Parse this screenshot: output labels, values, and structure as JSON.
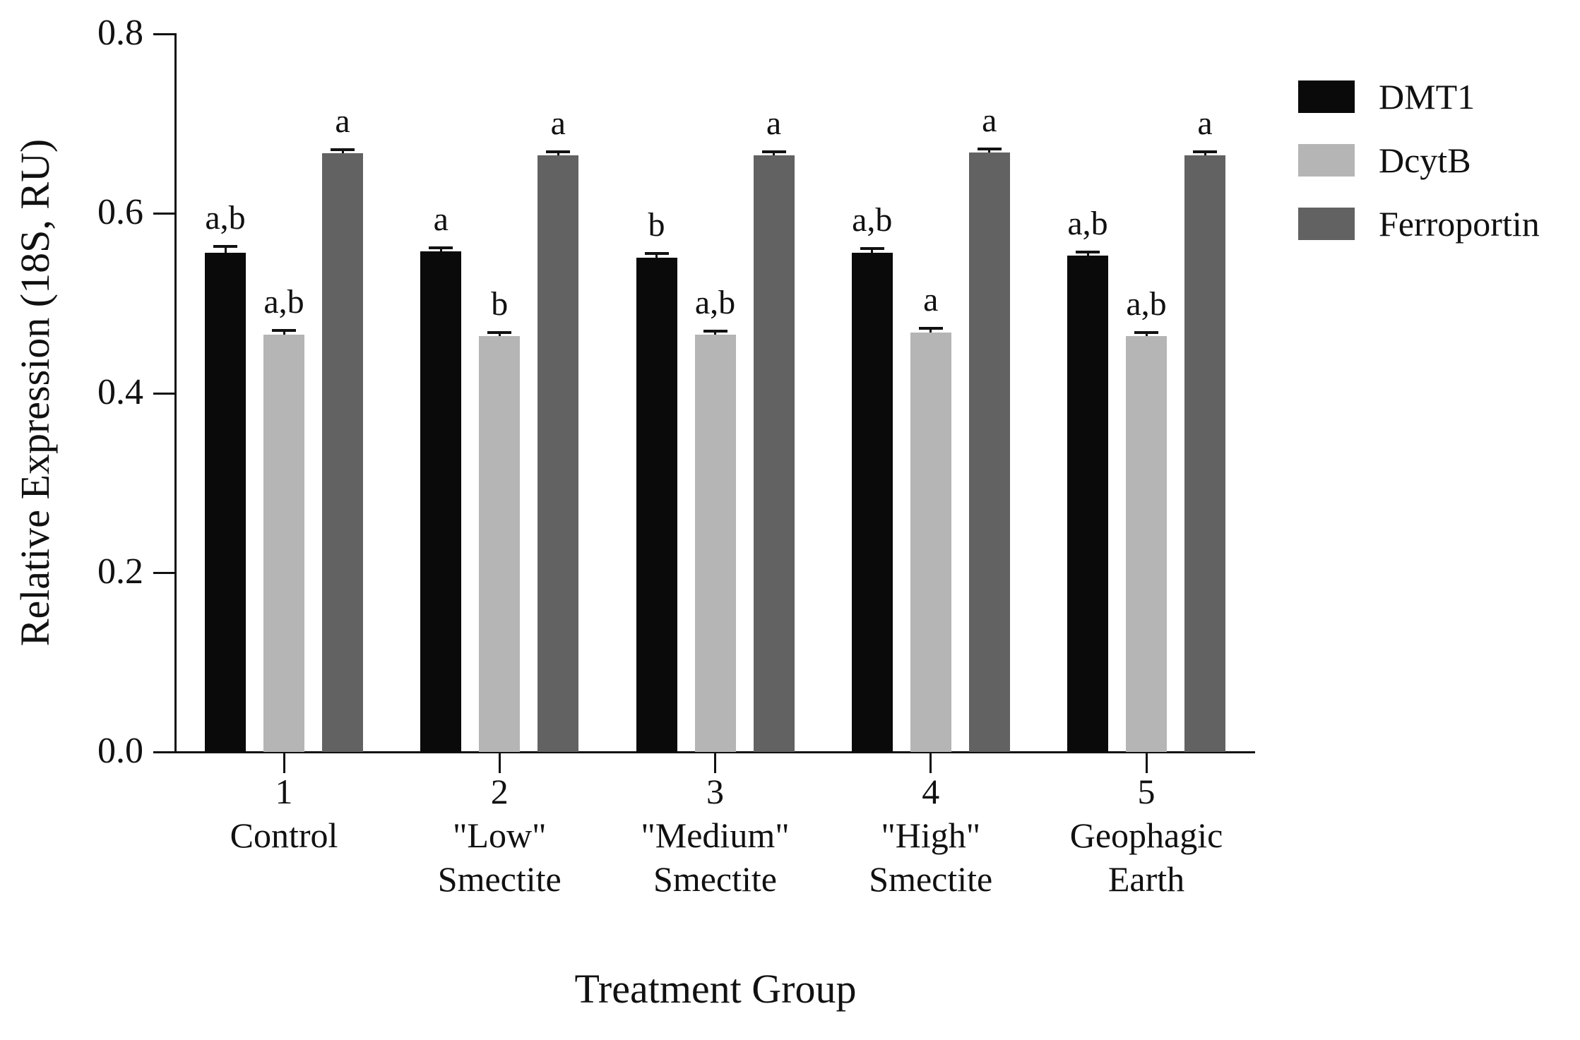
{
  "figure": {
    "background": "#ffffff",
    "text_color": "#111111"
  },
  "chart_data": {
    "type": "bar",
    "title": "",
    "xlabel": "Treatment Group",
    "ylabel": "Relative Expression (18S, RU)",
    "ylim": [
      0.0,
      0.8
    ],
    "yticks": [
      0.0,
      0.2,
      0.4,
      0.6,
      0.8
    ],
    "ytick_labels": [
      "0.0",
      "0.2",
      "0.4",
      "0.6",
      "0.8"
    ],
    "grid": false,
    "legend_position": "top-right",
    "categories": [
      {
        "number": "1",
        "name": "Control"
      },
      {
        "number": "2",
        "name": "\"Low\"\nSmectite"
      },
      {
        "number": "3",
        "name": "\"Medium\"\nSmectite"
      },
      {
        "number": "4",
        "name": "\"High\"\nSmectite"
      },
      {
        "number": "5",
        "name": "Geophagic\nEarth"
      }
    ],
    "series": [
      {
        "name": "DMT1",
        "color": "#0a0a0a",
        "values": [
          0.556,
          0.558,
          0.551,
          0.556,
          0.553
        ],
        "errors": [
          0.007,
          0.004,
          0.004,
          0.005,
          0.004
        ],
        "letters": [
          "a,b",
          "a",
          "b",
          "a,b",
          "a,b"
        ]
      },
      {
        "name": "DcytB",
        "color": "#b5b5b5",
        "values": [
          0.465,
          0.463,
          0.465,
          0.467,
          0.463
        ],
        "errors": [
          0.005,
          0.004,
          0.004,
          0.005,
          0.004
        ],
        "letters": [
          "a,b",
          "b",
          "a,b",
          "a",
          "a,b"
        ]
      },
      {
        "name": "Ferroportin",
        "color": "#626262",
        "values": [
          0.667,
          0.665,
          0.665,
          0.668,
          0.665
        ],
        "errors": [
          0.004,
          0.004,
          0.004,
          0.004,
          0.004
        ],
        "letters": [
          "a",
          "a",
          "a",
          "a",
          "a"
        ]
      }
    ]
  }
}
